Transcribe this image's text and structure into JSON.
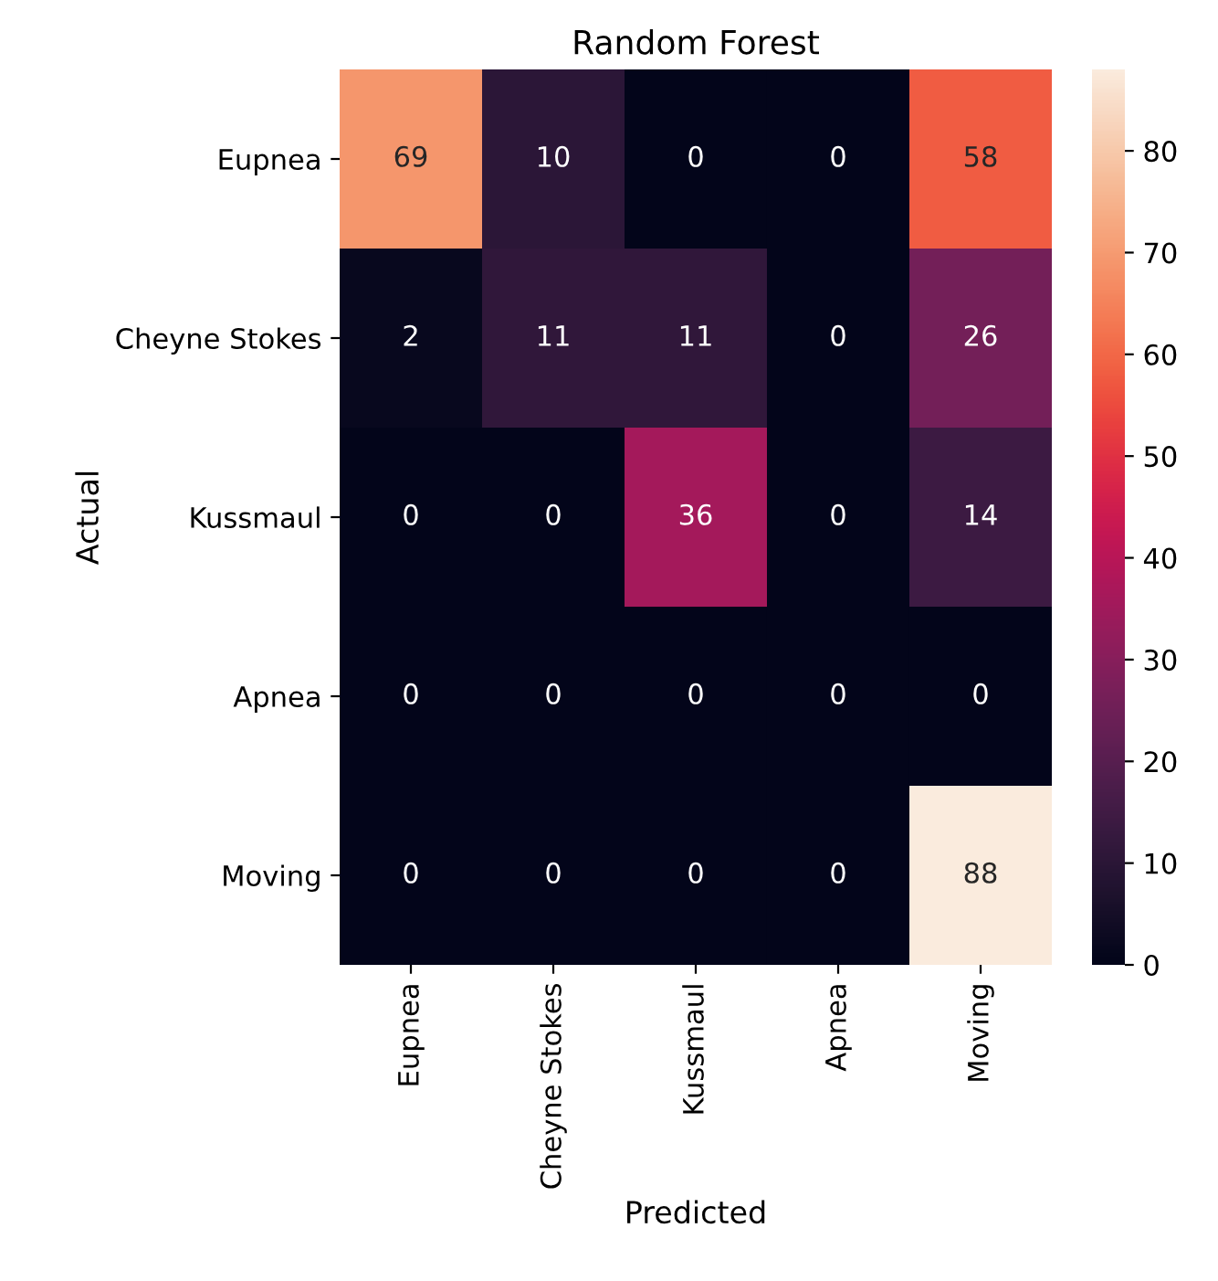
{
  "chart_data": {
    "type": "heatmap",
    "title": "Random Forest",
    "xlabel": "Predicted",
    "ylabel": "Actual",
    "categories": [
      "Eupnea",
      "Cheyne Stokes",
      "Kussmaul",
      "Apnea",
      "Moving"
    ],
    "y_categories": [
      "Eupnea",
      "Cheyne Stokes",
      "Kussmaul",
      "Apnea",
      "Moving"
    ],
    "cells": [
      [
        69,
        10,
        0,
        0,
        58
      ],
      [
        2,
        11,
        11,
        0,
        26
      ],
      [
        0,
        0,
        36,
        0,
        14
      ],
      [
        0,
        0,
        0,
        0,
        0
      ],
      [
        0,
        0,
        0,
        0,
        88
      ]
    ],
    "clim": [
      0,
      88
    ],
    "cticks": [
      0,
      10,
      20,
      30,
      40,
      50,
      60,
      70,
      80
    ],
    "data_labels": true
  }
}
